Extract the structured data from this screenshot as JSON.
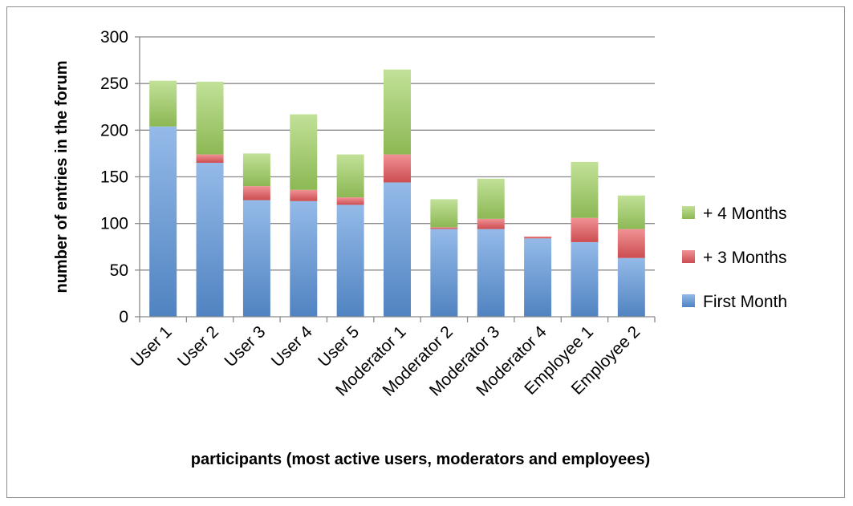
{
  "chart_data": {
    "type": "bar",
    "stacked": true,
    "categories": [
      "User 1",
      "User 2",
      "User 3",
      "User 4",
      "User 5",
      "Moderator 1",
      "Moderator 2",
      "Moderator 3",
      "Moderator 4",
      "Employee 1",
      "Employee 2"
    ],
    "series": [
      {
        "name": "First Month",
        "color": "#5b95db",
        "values": [
          204,
          165,
          125,
          124,
          120,
          144,
          94,
          94,
          84,
          80,
          63
        ]
      },
      {
        "name": "+ 3 Months",
        "color": "#e8585c",
        "values": [
          0,
          9,
          15,
          12,
          8,
          30,
          2,
          11,
          2,
          26,
          31
        ]
      },
      {
        "name": "+ 4 Months",
        "color": "#9fd160",
        "values": [
          49,
          78,
          35,
          81,
          46,
          91,
          30,
          43,
          0,
          60,
          36
        ]
      }
    ],
    "legend_order": [
      "+ 4 Months",
      "+ 3 Months",
      "First Month"
    ],
    "xlabel": "participants (most active users, moderators and employees)",
    "ylabel": "number of entries in the forum",
    "ylim": [
      0,
      300
    ],
    "yticks": [
      0,
      50,
      100,
      150,
      200,
      250,
      300
    ],
    "grid": true,
    "legend_position": "right"
  }
}
